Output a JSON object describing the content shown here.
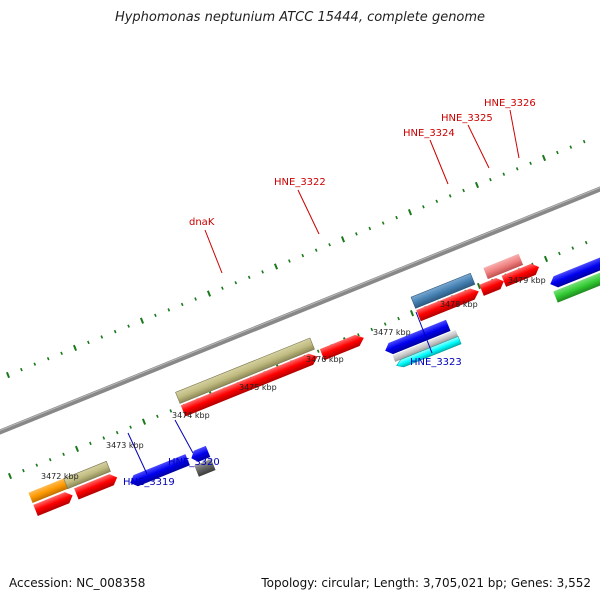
{
  "title": "Hyphomonas neptunium ATCC 15444, complete genome",
  "footer": {
    "accession": "Accession: NC_008358",
    "summary": "Topology: circular; Length: 3,705,021 bp; Genes: 3,552"
  },
  "scale_labels": [
    "3472 kbp",
    "3473 kbp",
    "3474 kbp",
    "3475 kbp",
    "3476 kbp",
    "3477 kbp",
    "3478 kbp",
    "3479 kbp"
  ],
  "gene_labels": {
    "top": [
      "dnaK",
      "HNE_3322",
      "HNE_3324",
      "HNE_3325",
      "HNE_3326"
    ],
    "bottom": [
      "HNE_3319",
      "HNE_3320",
      "HNE_3323"
    ]
  },
  "colors": {
    "label_top": "#cc0000",
    "label_bottom": "#0000bb",
    "backbone": "#808080",
    "tick": "#1a7a1a",
    "gene_red": "#ff0000",
    "gene_olive": "#c0bb80",
    "gene_blue": "#0000ee",
    "gene_steel": "#4682b4",
    "gene_pink": "#f08080",
    "gene_green": "#33cc33",
    "gene_orange": "#ff9900",
    "gene_gray": "#666666",
    "gene_lightgray": "#c8c8c8",
    "gene_cyan": "#00ffff"
  }
}
